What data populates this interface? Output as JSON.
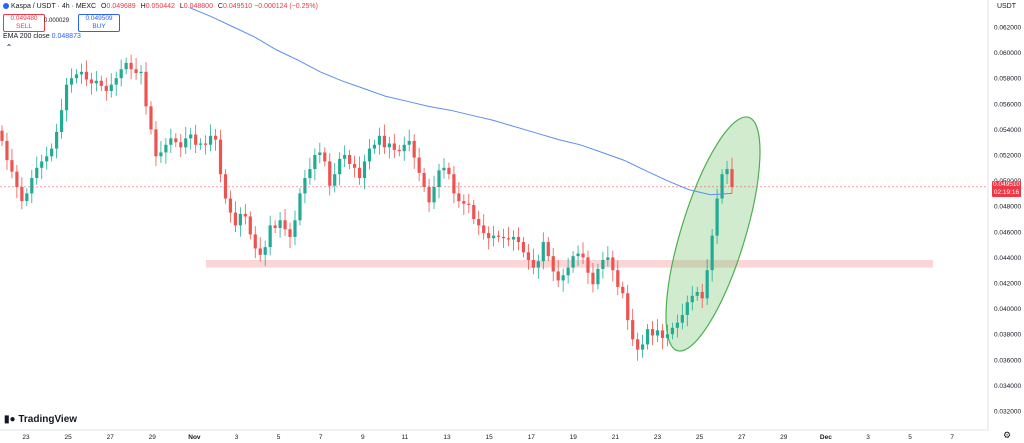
{
  "header": {
    "symbol": "Kaspa / USDT · 4h · MEXC",
    "ohlc": [
      {
        "k": "O",
        "v": "0.049689"
      },
      {
        "k": "H",
        "v": "0.050442"
      },
      {
        "k": "L",
        "v": "0.048800"
      },
      {
        "k": "C",
        "v": "0.049510"
      }
    ],
    "change": "−0.000124 (−0.25%)",
    "sell_price": "0.049480",
    "sell_label": "SELL",
    "spread": "0.000029",
    "buy_price": "0.049509",
    "buy_label": "BUY",
    "ema_label": "EMA 200 close",
    "ema_value": "0.048873",
    "collapse_icon": "chevron-up-icon"
  },
  "currency": "USDT",
  "last_price": {
    "price": "0.049510",
    "countdown": "02:19:16"
  },
  "branding": "TradingView",
  "settings_icon": "gear-icon",
  "colors": {
    "up": "#22ab94",
    "down": "#ef5350",
    "ema": "#5b8def",
    "zone": "#f8b4b4",
    "ellipse": "#4caf50"
  },
  "chart_data": {
    "type": "candlestick",
    "symbol": "Kaspa / USDT",
    "timeframe": "4h",
    "exchange": "MEXC",
    "ylim": [
      0.031,
      0.0635
    ],
    "y_ticks": [
      "0.062000",
      "0.060000",
      "0.058000",
      "0.056000",
      "0.054000",
      "0.052000",
      "0.050000",
      "0.048000",
      "0.046000",
      "0.044000",
      "0.042000",
      "0.040000",
      "0.038000",
      "0.036000",
      "0.034000",
      "0.032000"
    ],
    "x_ticks": [
      "23",
      "25",
      "27",
      "29",
      "Nov",
      "3",
      "5",
      "7",
      "9",
      "11",
      "13",
      "15",
      "17",
      "19",
      "21",
      "23",
      "25",
      "27",
      "29",
      "Dec",
      "3",
      "5",
      "7"
    ],
    "ema_200": [
      0.0635,
      0.0628,
      0.062,
      0.0612,
      0.0602,
      0.0594,
      0.0585,
      0.0578,
      0.0572,
      0.0566,
      0.0562,
      0.0558,
      0.0555,
      0.0551,
      0.0547,
      0.0542,
      0.0537,
      0.0532,
      0.0528,
      0.0522,
      0.0516,
      0.0508,
      0.05,
      0.0493,
      0.0489,
      0.049
    ],
    "support_zone": [
      0.0432,
      0.0438
    ],
    "annotation": "ellipse highlighting breakout",
    "candles_close": [
      0.0531,
      0.0516,
      0.0507,
      0.0495,
      0.0484,
      0.049,
      0.0502,
      0.051,
      0.0515,
      0.0519,
      0.0525,
      0.0538,
      0.0555,
      0.0575,
      0.058,
      0.0583,
      0.0585,
      0.0579,
      0.0576,
      0.0578,
      0.0574,
      0.057,
      0.0575,
      0.058,
      0.0587,
      0.0592,
      0.0587,
      0.0584,
      0.0585,
      0.0558,
      0.054,
      0.0519,
      0.0522,
      0.0528,
      0.0533,
      0.053,
      0.0526,
      0.0533,
      0.0536,
      0.0528,
      0.0529,
      0.0528,
      0.0535,
      0.0532,
      0.0505,
      0.0486,
      0.0475,
      0.0465,
      0.0474,
      0.0472,
      0.0458,
      0.0447,
      0.0442,
      0.0448,
      0.0465,
      0.0463,
      0.0469,
      0.0462,
      0.0456,
      0.0469,
      0.049,
      0.0502,
      0.0509,
      0.052,
      0.0522,
      0.0515,
      0.0496,
      0.0505,
      0.0517,
      0.052,
      0.0513,
      0.051,
      0.0502,
      0.0515,
      0.0525,
      0.0528,
      0.0535,
      0.0526,
      0.0529,
      0.0524,
      0.0523,
      0.0528,
      0.0531,
      0.0518,
      0.0506,
      0.0495,
      0.0483,
      0.0495,
      0.0508,
      0.051,
      0.0505,
      0.049,
      0.0484,
      0.0482,
      0.0481,
      0.047,
      0.0465,
      0.0459,
      0.0455,
      0.0457,
      0.0456,
      0.0455,
      0.0454,
      0.0456,
      0.0452,
      0.0444,
      0.0438,
      0.0432,
      0.0437,
      0.0452,
      0.0441,
      0.0429,
      0.0422,
      0.0426,
      0.0432,
      0.0441,
      0.0443,
      0.044,
      0.0428,
      0.0419,
      0.0431,
      0.0438,
      0.044,
      0.043,
      0.0417,
      0.0412,
      0.0391,
      0.0376,
      0.0368,
      0.0372,
      0.0384,
      0.0379,
      0.0383,
      0.0377,
      0.038,
      0.0385,
      0.0389,
      0.0395,
      0.0405,
      0.041,
      0.0413,
      0.0408,
      0.043,
      0.0457,
      0.0486,
      0.0505,
      0.0509,
      0.0495
    ]
  }
}
